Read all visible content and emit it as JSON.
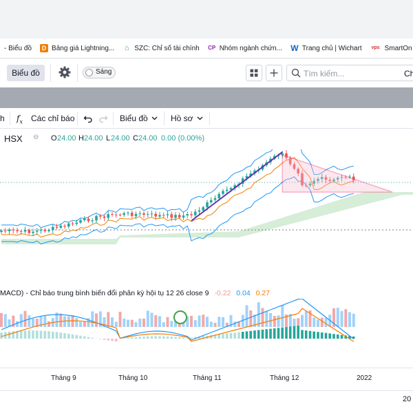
{
  "bookmarks": [
    {
      "label": "- Biểu đồ",
      "icon": "none",
      "color": ""
    },
    {
      "label": "Bảng giá Lightning...",
      "icon": "d-logo-icon",
      "color": "#f57c00"
    },
    {
      "label": "SZC: Chỉ số tài chính",
      "icon": "house-icon",
      "color": "#34a853"
    },
    {
      "label": "Nhóm ngành chứn...",
      "icon": "cp-logo-icon",
      "color": "#8e24aa"
    },
    {
      "label": "Trang chủ | Wichart",
      "icon": "w-logo-icon",
      "color": "#1565c0"
    },
    {
      "label": "SmartOn",
      "icon": "vps-logo-icon",
      "color": "#d32f2f"
    }
  ],
  "toolbar": {
    "chart_button": "Biểu đồ",
    "theme_toggle": "Sáng",
    "search_placeholder": "Tìm kiếm...",
    "search_cut": "Ch"
  },
  "chart_toolbar": {
    "interval_cut": "h",
    "indicators": "Các chỉ báo",
    "layout": "Biểu đồ",
    "profile": "Hồ sơ"
  },
  "legend": {
    "exchange": "HSX",
    "open_label": "O",
    "open": "24.00",
    "high_label": "H",
    "high": "24.00",
    "low_label": "L",
    "low": "24.00",
    "close_label": "C",
    "close": "24.00",
    "change": "0.00 (0.00%)"
  },
  "macd": {
    "title": "MACD) - Chỉ báo trung bình biến đổi phân kỳ hội tụ 12 26 close 9",
    "hist": "-0.22",
    "macd": "0.04",
    "signal": "0.27"
  },
  "time_axis": {
    "ticks": [
      "Tháng 9",
      "Tháng 10",
      "Tháng 11",
      "Tháng 12",
      "2022"
    ],
    "bottom_cut": "20"
  },
  "colors": {
    "up": "#26a69a",
    "down": "#ef5350",
    "bollinger": "#2196f3",
    "ma": "#f57c00",
    "trendline": "#5e35b1",
    "triangle": "#e91e63"
  }
}
